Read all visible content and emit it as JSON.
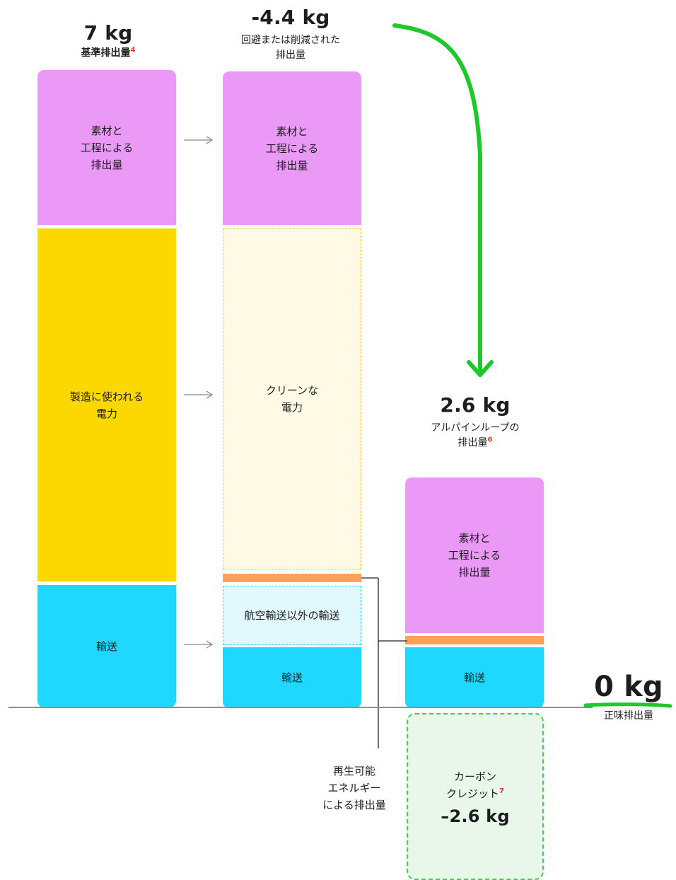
{
  "col1": {
    "value": "7 kg",
    "label": "基準排出量",
    "sup": "4",
    "materials": "素材と\n工程による\n排出量",
    "electricity": "製造に使われる\n電力",
    "transport": "輸送"
  },
  "col2": {
    "value": "-4.4 kg",
    "label": "回避または削減された\n排出量",
    "materials": "素材と\n工程による\n排出量",
    "clean_electricity": "クリーンな\n電力",
    "non_air_transport": "航空輸送以外の輸送",
    "transport": "輸送"
  },
  "col3": {
    "value": "2.6 kg",
    "label": "アルパインループの\n排出量",
    "sup": "6",
    "materials": "素材と\n工程による\n排出量",
    "transport": "輸送"
  },
  "renewable_label": "再生可能\nエネルギー\nによる排出量",
  "carbon_credit": {
    "label_line1": "カーボン",
    "label_line2": "クレジット",
    "sup": "7",
    "value": "–2.6 kg"
  },
  "net": {
    "value": "0 kg",
    "label": "正味排出量"
  },
  "colors": {
    "materials": "#ea99f6",
    "electricity": "#fcd700",
    "transport": "#1fd8ff",
    "renewable": "#ffa05a",
    "clean_electricity_fill": "#fff9e5",
    "non_air_fill": "#e1f8fd",
    "carbon_credit_fill": "#e9f7ea",
    "green_arrow": "#1ec82a"
  }
}
